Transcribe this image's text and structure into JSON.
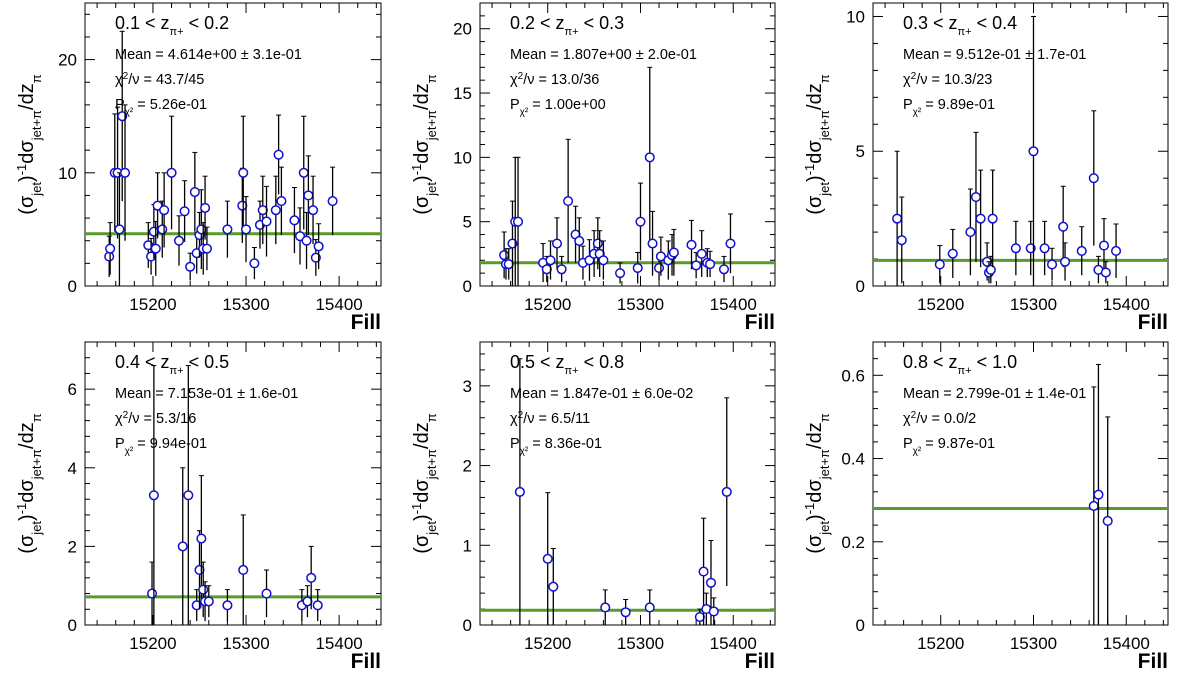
{
  "figure": {
    "ylabel": "(σjet)⁻¹dσjet+π/dzπ",
    "xlabel": "Fill",
    "x_ticks": [
      15200,
      15300,
      15400
    ],
    "colors": {
      "fit_line": "#5a9a2a",
      "marker": "#1010cc",
      "axis": "#000000"
    }
  },
  "chart_data": [
    {
      "type": "scatter",
      "title": "0.1 < zπ+ < 0.2",
      "xlabel": "Fill",
      "ylabel": "(σjet)⁻¹dσjet+π/dzπ",
      "xlim": [
        15127,
        15445
      ],
      "ylim": [
        0,
        25
      ],
      "y_ticks": [
        0,
        10,
        20
      ],
      "stats": [
        "Mean = 4.614e+00 ± 3.1e-01",
        "χ²/ν = 43.7/45",
        "Pχ² = 5.26e-01"
      ],
      "fit_mean": 4.614,
      "points": [
        {
          "x": 15153,
          "y": 2.6,
          "err": 1.8
        },
        {
          "x": 15154,
          "y": 3.3,
          "err": 2.3
        },
        {
          "x": 15159,
          "y": 10.0,
          "err": 5.2
        },
        {
          "x": 15162,
          "y": 10.0,
          "err": 5.8
        },
        {
          "x": 15164,
          "y": 5.0,
          "err": 5.0
        },
        {
          "x": 15167,
          "y": 15.0,
          "err": 7.5
        },
        {
          "x": 15170,
          "y": 10.0,
          "err": 6.0
        },
        {
          "x": 15195,
          "y": 3.6,
          "err": 2.0
        },
        {
          "x": 15198,
          "y": 2.6,
          "err": 1.6
        },
        {
          "x": 15201,
          "y": 4.8,
          "err": 2.4
        },
        {
          "x": 15203,
          "y": 3.3,
          "err": 2.4
        },
        {
          "x": 15205,
          "y": 7.1,
          "err": 2.9
        },
        {
          "x": 15210,
          "y": 5.0,
          "err": 2.5
        },
        {
          "x": 15212,
          "y": 6.7,
          "err": 3.3
        },
        {
          "x": 15220,
          "y": 10.0,
          "err": 5.0
        },
        {
          "x": 15228,
          "y": 4.0,
          "err": 2.2
        },
        {
          "x": 15234,
          "y": 6.6,
          "err": 2.7
        },
        {
          "x": 15240,
          "y": 1.7,
          "err": 1.2
        },
        {
          "x": 15245,
          "y": 8.3,
          "err": 3.5
        },
        {
          "x": 15247,
          "y": 2.9,
          "err": 1.8
        },
        {
          "x": 15250,
          "y": 4.5,
          "err": 2.0
        },
        {
          "x": 15252,
          "y": 5.0,
          "err": 3.5
        },
        {
          "x": 15254,
          "y": 3.3,
          "err": 2.3
        },
        {
          "x": 15256,
          "y": 6.9,
          "err": 2.8
        },
        {
          "x": 15258,
          "y": 3.3,
          "err": 1.9
        },
        {
          "x": 15280,
          "y": 5.0,
          "err": 2.5
        },
        {
          "x": 15296,
          "y": 7.1,
          "err": 3.3
        },
        {
          "x": 15297,
          "y": 10.0,
          "err": 5.0
        },
        {
          "x": 15300,
          "y": 5.0,
          "err": 2.9
        },
        {
          "x": 15309,
          "y": 2.0,
          "err": 1.4
        },
        {
          "x": 15315,
          "y": 5.4,
          "err": 2.1
        },
        {
          "x": 15318,
          "y": 6.7,
          "err": 3.0
        },
        {
          "x": 15322,
          "y": 5.7,
          "err": 3.1
        },
        {
          "x": 15332,
          "y": 6.7,
          "err": 3.0
        },
        {
          "x": 15335,
          "y": 11.6,
          "err": 3.5
        },
        {
          "x": 15338,
          "y": 7.5,
          "err": 3.0
        },
        {
          "x": 15352,
          "y": 5.8,
          "err": 2.9
        },
        {
          "x": 15358,
          "y": 4.4,
          "err": 2.5
        },
        {
          "x": 15362,
          "y": 10.0,
          "err": 5.0
        },
        {
          "x": 15365,
          "y": 4.0,
          "err": 2.5
        },
        {
          "x": 15367,
          "y": 8.0,
          "err": 3.5
        },
        {
          "x": 15372,
          "y": 6.7,
          "err": 3.0
        },
        {
          "x": 15375,
          "y": 2.5,
          "err": 1.6
        },
        {
          "x": 15378,
          "y": 3.5,
          "err": 2.0
        },
        {
          "x": 15393,
          "y": 7.5,
          "err": 3.0
        }
      ]
    },
    {
      "type": "scatter",
      "title": "0.2 < zπ+ < 0.3",
      "xlabel": "Fill",
      "ylabel": "(σjet)⁻¹dσjet+π/dzπ",
      "xlim": [
        15127,
        15445
      ],
      "ylim": [
        0,
        22
      ],
      "y_ticks": [
        0,
        5,
        10,
        15,
        20
      ],
      "stats": [
        "Mean = 1.807e+00 ± 2.0e-01",
        "χ²/ν = 13.0/36",
        "Pχ² = 1.00e+00"
      ],
      "fit_mean": 1.807,
      "points": [
        {
          "x": 15153,
          "y": 2.4,
          "err": 1.8
        },
        {
          "x": 15155,
          "y": 1.7,
          "err": 1.2
        },
        {
          "x": 15158,
          "y": 1.7,
          "err": 1.2
        },
        {
          "x": 15162,
          "y": 3.3,
          "err": 3.3
        },
        {
          "x": 15165,
          "y": 5.0,
          "err": 5.0
        },
        {
          "x": 15168,
          "y": 5.0,
          "err": 5.0
        },
        {
          "x": 15195,
          "y": 1.8,
          "err": 1.5
        },
        {
          "x": 15199,
          "y": 1.3,
          "err": 1.0
        },
        {
          "x": 15203,
          "y": 2.0,
          "err": 1.5
        },
        {
          "x": 15210,
          "y": 3.3,
          "err": 2.0
        },
        {
          "x": 15215,
          "y": 1.3,
          "err": 1.0
        },
        {
          "x": 15222,
          "y": 6.6,
          "err": 4.8
        },
        {
          "x": 15230,
          "y": 4.0,
          "err": 2.2
        },
        {
          "x": 15234,
          "y": 3.5,
          "err": 1.8
        },
        {
          "x": 15238,
          "y": 1.8,
          "err": 1.3
        },
        {
          "x": 15245,
          "y": 2.0,
          "err": 1.6
        },
        {
          "x": 15250,
          "y": 2.5,
          "err": 1.8
        },
        {
          "x": 15254,
          "y": 3.3,
          "err": 2.0
        },
        {
          "x": 15256,
          "y": 2.5,
          "err": 1.8
        },
        {
          "x": 15260,
          "y": 2.0,
          "err": 1.5
        },
        {
          "x": 15278,
          "y": 1.0,
          "err": 0.8
        },
        {
          "x": 15297,
          "y": 1.4,
          "err": 1.2
        },
        {
          "x": 15300,
          "y": 5.0,
          "err": 3.0
        },
        {
          "x": 15310,
          "y": 10.0,
          "err": 7.0
        },
        {
          "x": 15313,
          "y": 3.3,
          "err": 2.5
        },
        {
          "x": 15320,
          "y": 1.4,
          "err": 1.0
        },
        {
          "x": 15322,
          "y": 2.3,
          "err": 1.5
        },
        {
          "x": 15330,
          "y": 2.0,
          "err": 1.5
        },
        {
          "x": 15334,
          "y": 2.4,
          "err": 1.6
        },
        {
          "x": 15336,
          "y": 2.6,
          "err": 1.8
        },
        {
          "x": 15355,
          "y": 3.2,
          "err": 1.9
        },
        {
          "x": 15360,
          "y": 1.6,
          "err": 1.0
        },
        {
          "x": 15366,
          "y": 2.5,
          "err": 1.8
        },
        {
          "x": 15372,
          "y": 1.8,
          "err": 1.1
        },
        {
          "x": 15375,
          "y": 1.7,
          "err": 1.0
        },
        {
          "x": 15390,
          "y": 1.3,
          "err": 1.0
        },
        {
          "x": 15397,
          "y": 3.3,
          "err": 2.3
        }
      ]
    },
    {
      "type": "scatter",
      "title": "0.3 < zπ+ < 0.4",
      "xlabel": "Fill",
      "ylabel": "(σjet)⁻¹dσjet+π/dzπ",
      "xlim": [
        15127,
        15445
      ],
      "ylim": [
        0,
        10.5
      ],
      "y_ticks": [
        0,
        5,
        10
      ],
      "stats": [
        "Mean = 9.512e-01 ± 1.7e-01",
        "χ²/ν = 10.3/23",
        "Pχ² = 9.89e-01"
      ],
      "fit_mean": 0.951,
      "points": [
        {
          "x": 15153,
          "y": 2.5,
          "err": 2.5
        },
        {
          "x": 15158,
          "y": 1.7,
          "err": 1.6
        },
        {
          "x": 15199,
          "y": 0.8,
          "err": 0.7
        },
        {
          "x": 15213,
          "y": 1.2,
          "err": 0.9
        },
        {
          "x": 15232,
          "y": 2.0,
          "err": 1.6
        },
        {
          "x": 15238,
          "y": 3.3,
          "err": 2.4
        },
        {
          "x": 15243,
          "y": 2.5,
          "err": 1.8
        },
        {
          "x": 15250,
          "y": 0.9,
          "err": 0.7
        },
        {
          "x": 15252,
          "y": 0.5,
          "err": 0.4
        },
        {
          "x": 15254,
          "y": 0.6,
          "err": 0.5
        },
        {
          "x": 15256,
          "y": 2.5,
          "err": 1.8
        },
        {
          "x": 15281,
          "y": 1.4,
          "err": 1.0
        },
        {
          "x": 15297,
          "y": 1.4,
          "err": 1.0
        },
        {
          "x": 15300,
          "y": 5.0,
          "err": 5.0
        },
        {
          "x": 15312,
          "y": 1.4,
          "err": 1.0
        },
        {
          "x": 15320,
          "y": 0.8,
          "err": 0.6
        },
        {
          "x": 15332,
          "y": 2.2,
          "err": 1.5
        },
        {
          "x": 15334,
          "y": 0.9,
          "err": 0.7
        },
        {
          "x": 15352,
          "y": 1.3,
          "err": 0.9
        },
        {
          "x": 15365,
          "y": 4.0,
          "err": 2.5
        },
        {
          "x": 15370,
          "y": 0.6,
          "err": 0.5
        },
        {
          "x": 15376,
          "y": 1.5,
          "err": 1.0
        },
        {
          "x": 15389,
          "y": 1.3,
          "err": 1.0
        },
        {
          "x": 15378,
          "y": 0.5,
          "err": 0.4
        }
      ]
    },
    {
      "type": "scatter",
      "title": "0.4 < zπ+ < 0.5",
      "xlabel": "Fill",
      "ylabel": "(σjet)⁻¹dσjet+π/dzπ",
      "xlim": [
        15127,
        15445
      ],
      "ylim": [
        0,
        7.2
      ],
      "y_ticks": [
        0,
        2,
        4,
        6
      ],
      "stats": [
        "Mean = 7.153e-01 ± 1.6e-01",
        "χ²/ν = 5.3/16",
        "Pχ² = 9.94e-01"
      ],
      "fit_mean": 0.715,
      "points": [
        {
          "x": 15199,
          "y": 0.8,
          "err": 0.8
        },
        {
          "x": 15201,
          "y": 3.3,
          "err": 3.3
        },
        {
          "x": 15232,
          "y": 2.0,
          "err": 2.0
        },
        {
          "x": 15238,
          "y": 3.3,
          "err": 3.3
        },
        {
          "x": 15247,
          "y": 0.5,
          "err": 0.4
        },
        {
          "x": 15250,
          "y": 1.4,
          "err": 1.0
        },
        {
          "x": 15252,
          "y": 2.2,
          "err": 1.6
        },
        {
          "x": 15254,
          "y": 0.9,
          "err": 0.7
        },
        {
          "x": 15256,
          "y": 0.6,
          "err": 0.5
        },
        {
          "x": 15260,
          "y": 0.6,
          "err": 0.4
        },
        {
          "x": 15280,
          "y": 0.5,
          "err": 0.4
        },
        {
          "x": 15297,
          "y": 1.4,
          "err": 1.4
        },
        {
          "x": 15322,
          "y": 0.8,
          "err": 0.6
        },
        {
          "x": 15360,
          "y": 0.5,
          "err": 0.4
        },
        {
          "x": 15366,
          "y": 0.6,
          "err": 0.4
        },
        {
          "x": 15370,
          "y": 1.2,
          "err": 0.8
        },
        {
          "x": 15377,
          "y": 0.5,
          "err": 0.4
        }
      ]
    },
    {
      "type": "scatter",
      "title": "0.5 < zπ+ < 0.8",
      "xlabel": "Fill",
      "ylabel": "(σjet)⁻¹dσjet+π/dzπ",
      "xlim": [
        15127,
        15445
      ],
      "ylim": [
        0,
        3.55
      ],
      "y_ticks": [
        0,
        1,
        2,
        3
      ],
      "stats": [
        "Mean = 1.847e-01 ± 6.0e-02",
        "χ²/ν = 6.5/11",
        "Pχ² = 8.36e-01"
      ],
      "fit_mean": 0.185,
      "points": [
        {
          "x": 15170,
          "y": 1.67,
          "err": 1.67
        },
        {
          "x": 15200,
          "y": 0.83,
          "err": 0.83
        },
        {
          "x": 15206,
          "y": 0.48,
          "err": 0.48
        },
        {
          "x": 15262,
          "y": 0.22,
          "err": 0.22
        },
        {
          "x": 15284,
          "y": 0.16,
          "err": 0.16
        },
        {
          "x": 15310,
          "y": 0.22,
          "err": 0.22
        },
        {
          "x": 15364,
          "y": 0.1,
          "err": 0.1
        },
        {
          "x": 15368,
          "y": 0.67,
          "err": 0.67
        },
        {
          "x": 15371,
          "y": 0.2,
          "err": 0.2
        },
        {
          "x": 15376,
          "y": 0.53,
          "err": 0.53
        },
        {
          "x": 15379,
          "y": 0.17,
          "err": 0.17
        },
        {
          "x": 15393,
          "y": 1.67,
          "err": 1.18
        }
      ]
    },
    {
      "type": "scatter",
      "title": "0.8 < zπ+ < 1.0",
      "xlabel": "Fill",
      "ylabel": "(σjet)⁻¹dσjet+π/dzπ",
      "xlim": [
        15127,
        15445
      ],
      "ylim": [
        0,
        0.68
      ],
      "y_ticks": [
        0,
        0.2,
        0.4,
        0.6
      ],
      "stats": [
        "Mean = 2.799e-01 ± 1.4e-01",
        "χ²/ν = 0.0/2",
        "Pχ² = 9.87e-01"
      ],
      "fit_mean": 0.28,
      "points": [
        {
          "x": 15365,
          "y": 0.286,
          "err": 0.286
        },
        {
          "x": 15370,
          "y": 0.313,
          "err": 0.313
        },
        {
          "x": 15380,
          "y": 0.25,
          "err": 0.25
        }
      ]
    }
  ]
}
